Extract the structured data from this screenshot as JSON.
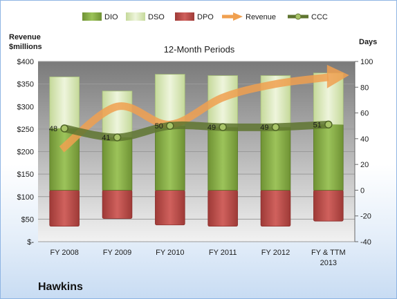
{
  "company": "Hawkins",
  "chart_data": {
    "type": "bar",
    "subtitle": "12-Month Periods",
    "categories": [
      "FY 2008",
      "FY 2009",
      "FY 2010",
      "FY 2011",
      "FY 2012",
      "FY & TTM 2013"
    ],
    "left_axis": {
      "label": "Revenue $millions",
      "label_lines": [
        "Revenue",
        "$millions"
      ],
      "range": [
        0,
        400
      ],
      "ticks": [
        "$-",
        "$50",
        "$100",
        "$150",
        "$200",
        "$250",
        "$300",
        "$350",
        "$400"
      ]
    },
    "right_axis": {
      "label": "Days",
      "range": [
        -40,
        100
      ],
      "ticks": [
        "-40",
        "-20",
        "0",
        "20",
        "40",
        "60",
        "80",
        "100"
      ]
    },
    "series": [
      {
        "name": "DIO",
        "type": "stacked-bar",
        "axis": "days",
        "color": "#8cb346",
        "values": [
          48,
          41,
          50,
          49,
          49,
          51
        ]
      },
      {
        "name": "DSO",
        "type": "stacked-bar",
        "axis": "days",
        "color": "#d7e7b1",
        "values": [
          40,
          36,
          40,
          40,
          40,
          40
        ]
      },
      {
        "name": "DPO",
        "type": "negative-bar",
        "axis": "days",
        "color": "#c0504d",
        "values": [
          -28,
          -22,
          -27,
          -28,
          -28,
          -24
        ]
      },
      {
        "name": "Revenue",
        "type": "arrow-line",
        "axis": "revenue",
        "color": "#f0a050",
        "values": [
          205,
          300,
          260,
          320,
          350,
          365
        ]
      },
      {
        "name": "CCC",
        "type": "line",
        "axis": "days",
        "color": "#5f7530",
        "values": [
          48,
          41,
          50,
          49,
          49,
          51
        ]
      }
    ],
    "data_labels": [
      "48",
      "41",
      "50",
      "49",
      "49",
      "51"
    ],
    "grid": true,
    "legend": "top"
  }
}
